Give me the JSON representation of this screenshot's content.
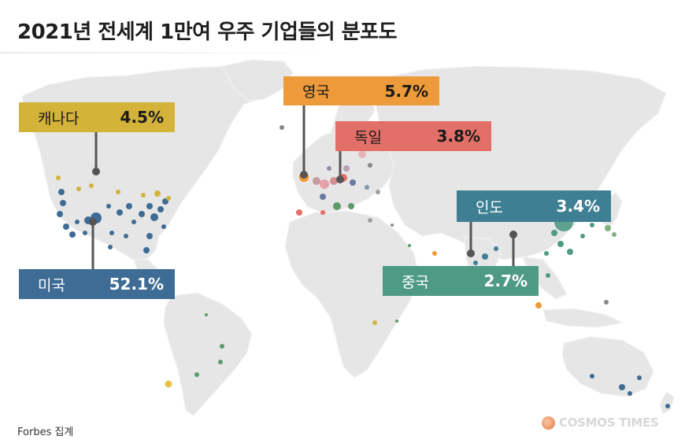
{
  "title": "2021년 전세계 1만여 우주 기업들의 분포도",
  "labels": {
    "canada": {
      "name": "캐나다",
      "pct": "4.5%",
      "color": "#d4b33a"
    },
    "usa": {
      "name": "미국",
      "pct": "52.1%",
      "color": "#3e6c95"
    },
    "uk": {
      "name": "영국",
      "pct": "5.7%",
      "color": "#ed9a3a"
    },
    "germany": {
      "name": "독일",
      "pct": "3.8%",
      "color": "#e27068"
    },
    "india": {
      "name": "인도",
      "pct": "3.4%",
      "color": "#3f7f93"
    },
    "china": {
      "name": "중국",
      "pct": "2.7%",
      "color": "#4f9a85"
    }
  },
  "source": "Forbes 집계",
  "brand": "COSMOS TIMES",
  "colors": {
    "land": "#e6e6e6",
    "ocean": "#ffffff",
    "leader": "#555555"
  }
}
